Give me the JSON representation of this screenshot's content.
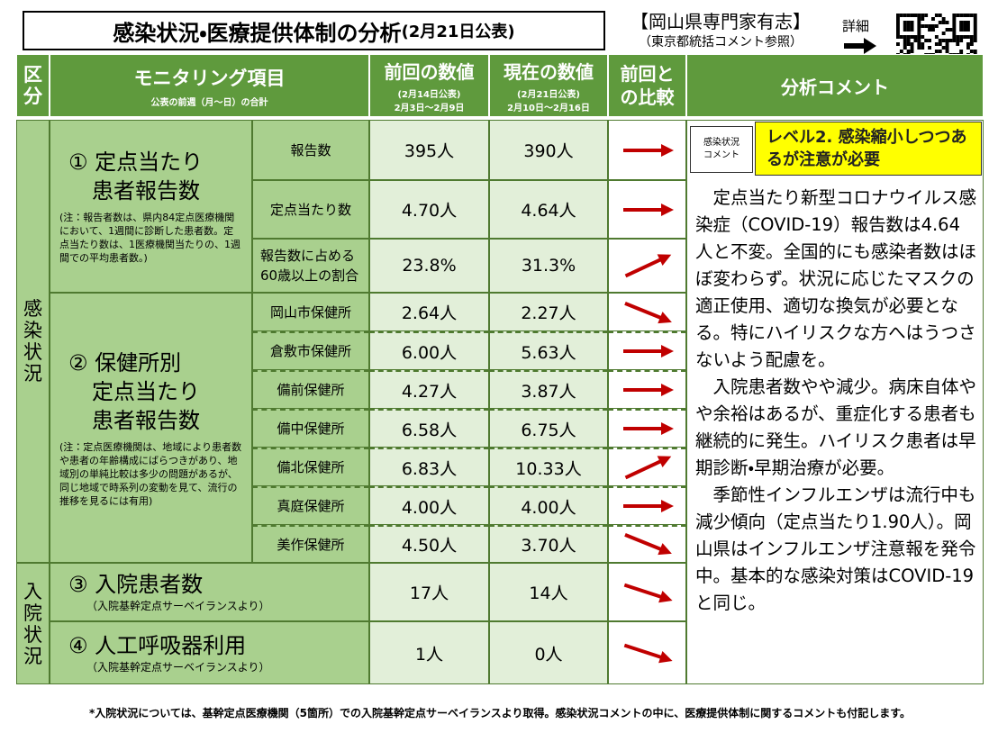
{
  "header": {
    "title": "感染状況・医療提供体制の分析",
    "date": "(2月21日公表)",
    "expert": "【岡山県専門家有志】",
    "expert_note": "（東京都統括コメント参照）",
    "detail": "詳細"
  },
  "columns": {
    "kubun": "区分",
    "item": "モニタリング項目",
    "item_note": "公表の前週（月～日）の合計",
    "prev": "前回の数値",
    "prev_date": "(2月14日公表)",
    "prev_range": "2月3日～2月9日",
    "cur": "現在の数値",
    "cur_date": "(2月21日公表)",
    "cur_range": "2月10日～2月16日",
    "compare": "前回との比較",
    "comment": "分析コメント"
  },
  "groups": [
    {
      "label": "感染状況",
      "items": [
        {
          "title": [
            "① 定点当たり",
            "患者報告数"
          ],
          "note": "(注：報告者数は、県内84定点医療機関において、1週間に診断した患者数。定点当たり数は、1医療機関当たりの、1週間での平均患者数。)",
          "rows": [
            {
              "label": "報告数",
              "prev": "395人",
              "cur": "390人"
            },
            {
              "label": "定点当たり数",
              "prev": "4.70人",
              "cur": "4.64人"
            },
            {
              "label": "報告数に占める60歳以上の割合",
              "prev": "23.8%",
              "cur": "31.3%"
            }
          ]
        },
        {
          "title": [
            "② 保健所別",
            "定点当たり",
            "患者報告数"
          ],
          "note": "(注：定点医療機関は、地域により患者数や患者の年齢構成にばらつきがあり、地域別の単純比較は多少の問題があるが、同じ地域で時系列の変動を見て、流行の推移を見るには有用)",
          "rows": [
            {
              "label": "岡山市保健所",
              "prev": "2.64人",
              "cur": "2.27人"
            },
            {
              "label": "倉敷市保健所",
              "prev": "6.00人",
              "cur": "5.63人"
            },
            {
              "label": "備前保健所",
              "prev": "4.27人",
              "cur": "3.87人"
            },
            {
              "label": "備中保健所",
              "prev": "6.58人",
              "cur": "6.75人"
            },
            {
              "label": "備北保健所",
              "prev": "6.83人",
              "cur": "10.33人"
            },
            {
              "label": "真庭保健所",
              "prev": "4.00人",
              "cur": "4.00人"
            },
            {
              "label": "美作保健所",
              "prev": "4.50人",
              "cur": "3.70人"
            }
          ]
        }
      ]
    },
    {
      "label": "入院状況",
      "items": [
        {
          "title": [
            "③ 入院患者数"
          ],
          "note": "（入院基幹定点サーベイランスより）",
          "prev": "17人",
          "cur": "14人"
        },
        {
          "title": [
            "④ 人工呼吸器利用"
          ],
          "note": "（入院基幹定点サーベイランスより）",
          "prev": "1人",
          "cur": "0人"
        }
      ]
    }
  ],
  "comment": {
    "label": "感染状況コメント",
    "level": "レベル2. 感染縮小しつつあるが注意が必要",
    "body": [
      "定点当たり新型コロナウイルス感染症（COVID-19）報告数は4.64人と不変。全国的にも感染者数はほぼ変わらず。状況に応じたマスクの適正使用、適切な換気が必要となる。特にハイリスクな方へはうつさないよう配慮を。",
      "入院患者数やや減少。病床自体やや余裕はあるが、重症化する患者も継続的に発生。ハイリスク患者は早期診断・早期治療が必要。",
      "季節性インフルエンザは流行中も減少傾向（定点当たり1.90人）。岡山県はインフルエンザ注意報を発令中。基本的な感染対策はCOVID-19と同じ。"
    ]
  },
  "footer": "*入院状況については、基幹定点医療機関（5箇所）での入院基幹定点サーベイランスより取得。感染状況コメントの中に、医療提供体制に関するコメントも付記します。"
}
